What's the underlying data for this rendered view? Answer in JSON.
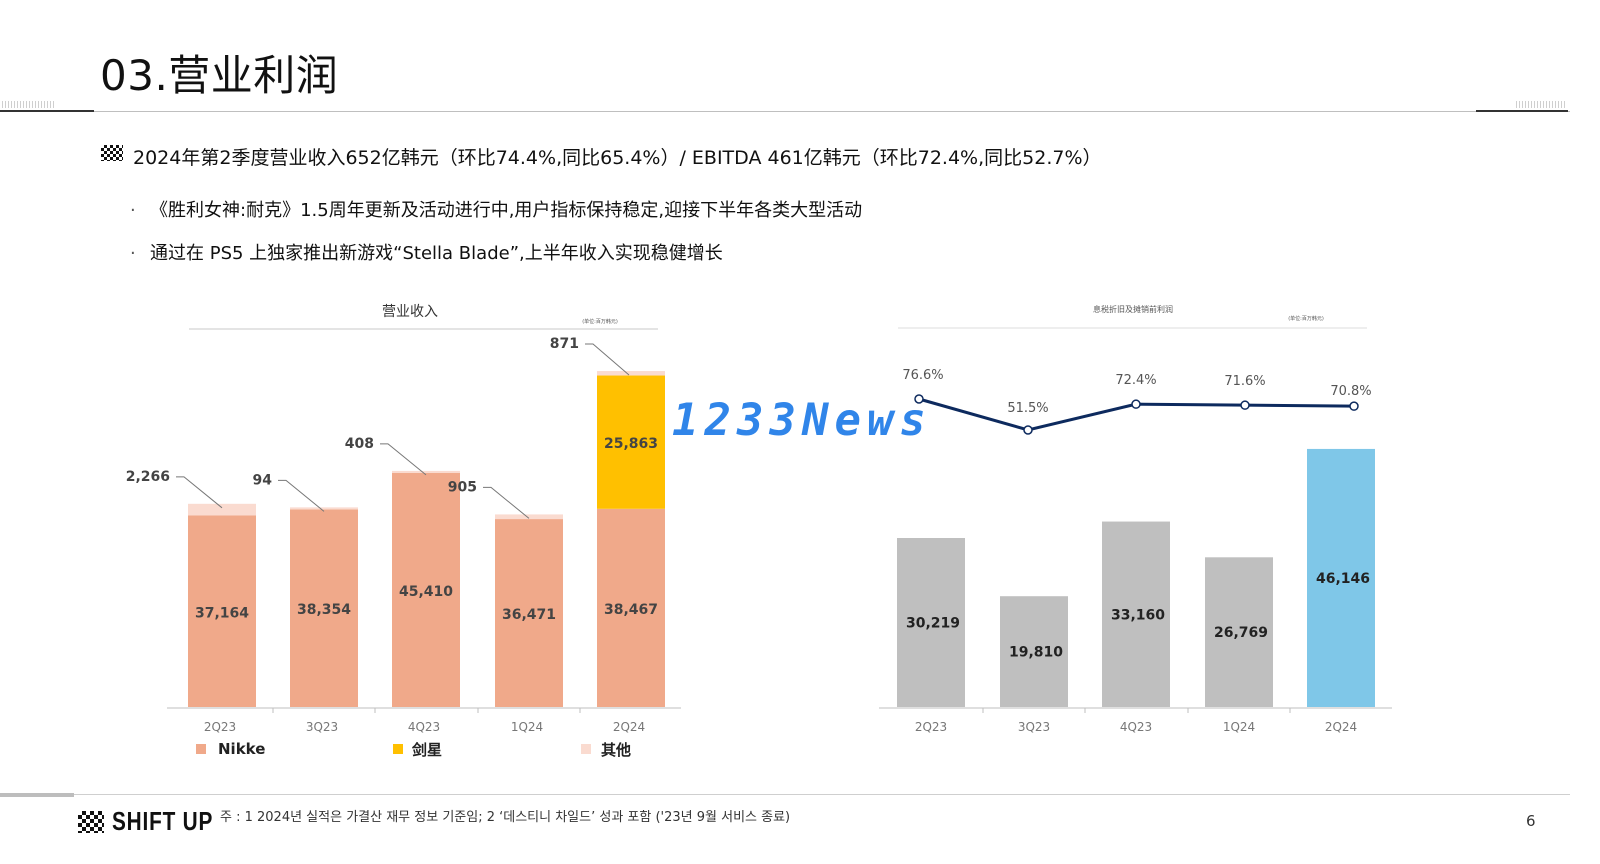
{
  "page": {
    "title": "03.营业利润",
    "summary": "2024年第2季度营业收入652亿韩元（环比74.4%,同比65.4%）/ EBITDA 461亿韩元（环比72.4%,同比52.7%）",
    "bullets": [
      "《胜利女神:耐克》1.5周年更新及活动进行中,用户指标保持稳定,迎接下半年各类大型活动",
      "通过在 PS5 上独家推出新游戏“Stella Blade”,上半年收入实现稳健增长"
    ],
    "watermark": "1233News",
    "footnote": "주 : 1 2024년 실적은 가결산 재무 정보 기준임; 2 ‘데스티니 차일드’ 성과 포함 ('23년 9월 서비스 종료)",
    "page_number": "6",
    "logo_text": "SHIFT UP"
  },
  "chart_data": [
    {
      "type": "bar",
      "stacked": true,
      "title": "营业收入",
      "unit_note": "(单位:百万韩元)",
      "categories": [
        "2Q23",
        "3Q23",
        "4Q23",
        "1Q24",
        "2Q24"
      ],
      "series": [
        {
          "name": "Nikke",
          "color": "#f0a98a",
          "values": [
            37164,
            38354,
            45410,
            36471,
            38467
          ]
        },
        {
          "name": "剑星",
          "color": "#ffc000",
          "values": [
            0,
            0,
            0,
            0,
            25863
          ]
        },
        {
          "name": "其他",
          "color": "#fadbd0",
          "values": [
            2266,
            94,
            408,
            905,
            871
          ]
        }
      ],
      "ylim": [
        0,
        70000
      ],
      "legend": "bottom"
    },
    {
      "type": "bar+line",
      "title": "息税折旧及摊销前利润",
      "unit_note": "(单位:百万韩元)",
      "categories": [
        "2Q23",
        "3Q23",
        "4Q23",
        "1Q24",
        "2Q24"
      ],
      "bars": {
        "values": [
          30219,
          19810,
          33160,
          26769,
          46146
        ],
        "colors": [
          "#bfbfbf",
          "#bfbfbf",
          "#bfbfbf",
          "#bfbfbf",
          "#7fc7e8"
        ]
      },
      "line": {
        "values": [
          76.6,
          51.5,
          72.4,
          71.6,
          70.8
        ],
        "labels": [
          "76.6%",
          "51.5%",
          "72.4%",
          "71.6%",
          "70.8%"
        ],
        "color": "#0d2a5e"
      },
      "ylim": [
        0,
        70000
      ]
    }
  ]
}
